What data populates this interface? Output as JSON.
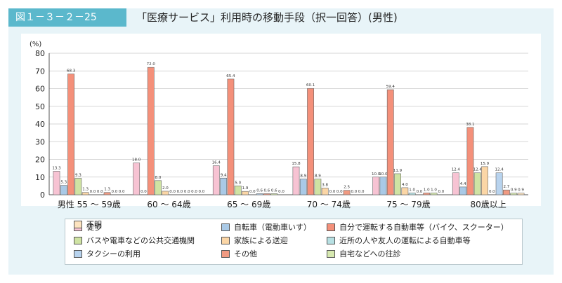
{
  "figure": {
    "label": "図１－３－２－25",
    "title": "「医療サービス」利用時の移動手段（択一回答）(男性)"
  },
  "chart_data": {
    "type": "bar",
    "y_unit": "(%)",
    "ylim": [
      0,
      80
    ],
    "yticks": [
      0,
      10,
      20,
      30,
      40,
      50,
      60,
      70,
      80
    ],
    "grid": true,
    "legend_position": "bottom",
    "categories": [
      "男性 55 ～ 59歳",
      "60 ～ 64歳",
      "65 ～ 69歳",
      "70 ～ 74歳",
      "75 ～ 79歳",
      "80歳以上"
    ],
    "series": [
      {
        "name": "徒歩",
        "color": "#f7c3d3",
        "values": [
          13.3,
          18.0,
          16.4,
          15.8,
          10.0,
          12.4
        ],
        "labels": [
          "13.3",
          "18.0",
          "16.4",
          "15.8",
          "10.0",
          "12.4"
        ]
      },
      {
        "name": "自転車（電動車いす）",
        "color": "#a9c9e6",
        "values": [
          5.3,
          0.0,
          9.4,
          8.9,
          10.0,
          4.4
        ],
        "labels": [
          "5.3",
          "0.0",
          "9.4",
          "8.9",
          "10.0",
          "4.4"
        ]
      },
      {
        "name": "自分で運転する自動車等（バイク、スクーター）",
        "color": "#f4907a",
        "values": [
          68.3,
          72.0,
          65.4,
          60.1,
          59.4,
          38.1
        ],
        "labels": [
          "68.3",
          "72.0",
          "65.4",
          "60.1",
          "59.4",
          "38.1"
        ]
      },
      {
        "name": "バスや電車などの公共交通機関",
        "color": "#cfe3a3",
        "values": [
          9.3,
          8.0,
          5.0,
          8.9,
          11.9,
          12.4
        ],
        "labels": [
          "9.3",
          "8.0",
          "5.0",
          "8.9",
          "11.9",
          "12.4"
        ]
      },
      {
        "name": "家族による送迎",
        "color": "#fbd6a6",
        "values": [
          1.3,
          2.0,
          1.9,
          3.8,
          4.0,
          15.9
        ],
        "labels": [
          "1.3",
          "2.0",
          "1.9",
          "3.8",
          "4.0",
          "15.9"
        ]
      },
      {
        "name": "近所の人や友人の運転による自動車等",
        "color": "#b7e0e3",
        "values": [
          0.0,
          0.0,
          0.0,
          0.0,
          1.0,
          0.0
        ],
        "labels": [
          "0.0",
          "0.0",
          "0.0",
          "0.0",
          "1.0",
          "0.0"
        ]
      },
      {
        "name": "タクシーの利用",
        "color": "#b8d3ee",
        "values": [
          0.0,
          0.0,
          0.6,
          0.0,
          0.0,
          12.4
        ],
        "labels": [
          "0.0",
          "0.0",
          "0.6",
          "0.0",
          "0.0",
          "12.4"
        ]
      },
      {
        "name": "その他",
        "color": "#f09a82",
        "values": [
          1.3,
          0.0,
          0.6,
          2.5,
          1.0,
          2.7
        ],
        "labels": [
          "1.3",
          "0.0",
          "0.6",
          "2.5",
          "1.0",
          "2.7"
        ]
      },
      {
        "name": "自宅などへの往診",
        "color": "#d6e8b0",
        "values": [
          0.0,
          0.0,
          0.6,
          0.0,
          1.0,
          0.9
        ],
        "labels": [
          "0.0",
          "0.0",
          "0.6",
          "0.0",
          "1.0",
          "0.9"
        ]
      },
      {
        "name": "不明",
        "color": "#fde3bf",
        "values": [
          0.0,
          0.0,
          0.0,
          0.0,
          0.0,
          0.9
        ],
        "labels": [
          "0.0",
          "0.0",
          "0.0",
          "0.0",
          "0.0",
          "0.9"
        ]
      }
    ]
  }
}
